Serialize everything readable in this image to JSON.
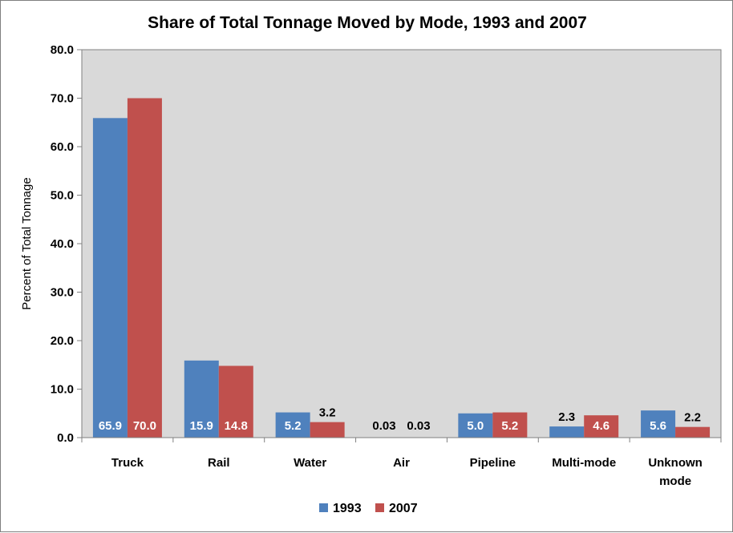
{
  "chart_data": {
    "type": "bar",
    "title": "Share of Total Tonnage Moved by Mode, 1993 and 2007",
    "xlabel": "",
    "ylabel": "Percent of Total Tonnage",
    "ylim": [
      0,
      80
    ],
    "ytick_step": 10,
    "ytick_labels": [
      "0.0",
      "10.0",
      "20.0",
      "30.0",
      "40.0",
      "50.0",
      "60.0",
      "70.0",
      "80.0"
    ],
    "grid": false,
    "legend_position": "bottom",
    "plot_background": "#d9d9d9",
    "categories": [
      [
        "Truck"
      ],
      [
        "Rail"
      ],
      [
        "Water"
      ],
      [
        "Air"
      ],
      [
        "Pipeline"
      ],
      [
        "Multi-mode"
      ],
      [
        "Unknown",
        "mode"
      ]
    ],
    "series": [
      {
        "name": "1993",
        "color": "#4f81bd",
        "values": [
          65.9,
          15.9,
          5.2,
          0.03,
          5.0,
          2.3,
          5.6
        ],
        "labels": [
          "65.9",
          "15.9",
          "5.2",
          "0.03",
          "5.0",
          "2.3",
          "5.6"
        ]
      },
      {
        "name": "2007",
        "color": "#c0504d",
        "values": [
          70.0,
          14.8,
          3.2,
          0.03,
          5.2,
          4.6,
          2.2
        ],
        "labels": [
          "70.0",
          "14.8",
          "3.2",
          "0.03",
          "5.2",
          "4.6",
          "2.2"
        ]
      }
    ]
  }
}
